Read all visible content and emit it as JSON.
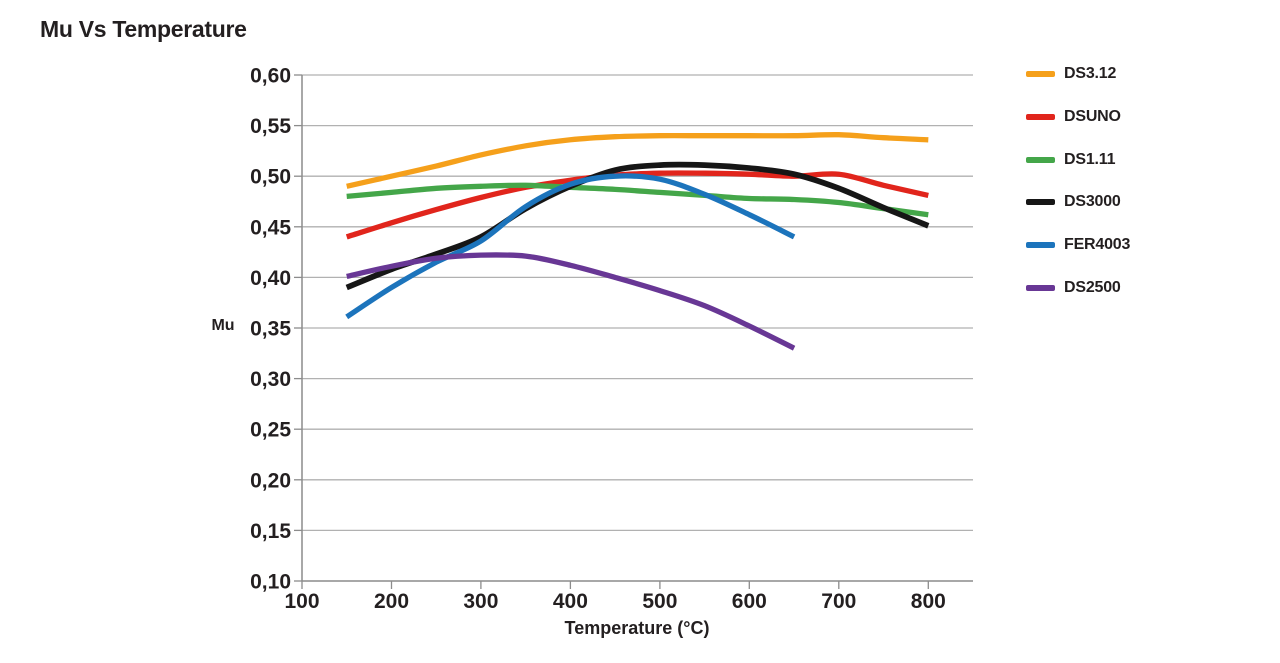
{
  "title": "Mu Vs Temperature",
  "chart_data": {
    "type": "line",
    "title": "Mu Vs Temperature",
    "xlabel": "Temperature (°C)",
    "ylabel": "Mu",
    "xlim": [
      100,
      850
    ],
    "ylim": [
      0.1,
      0.6
    ],
    "grid": "horizontal",
    "legend_position": "right",
    "decimal_separator": ",",
    "x_ticks": [
      100,
      200,
      300,
      400,
      500,
      600,
      700,
      800
    ],
    "x_tick_labels": [
      "100",
      "200",
      "300",
      "400",
      "500",
      "600",
      "700",
      "800"
    ],
    "y_ticks": [
      0.6,
      0.55,
      0.5,
      0.45,
      0.4,
      0.35,
      0.3,
      0.25,
      0.2,
      0.15,
      0.1
    ],
    "y_tick_labels": [
      "0,60",
      "0,55",
      "0,50",
      "0,45",
      "0,40",
      "0,35",
      "0,30",
      "0,25",
      "0,20",
      "0,15",
      "0,10"
    ],
    "style": {
      "text_color": "#231F20",
      "grid_color": "#B1B1B1",
      "axis_color": "#8C8C8C",
      "background": "#FFFFFF"
    },
    "series": [
      {
        "name": "DS3.12",
        "color": "#F5A01B",
        "x": [
          150,
          200,
          250,
          300,
          350,
          400,
          450,
          500,
          550,
          600,
          650,
          700,
          750,
          800
        ],
        "y": [
          0.49,
          0.5,
          0.51,
          0.521,
          0.53,
          0.536,
          0.539,
          0.54,
          0.54,
          0.54,
          0.54,
          0.541,
          0.538,
          0.536
        ]
      },
      {
        "name": "DSUNO",
        "color": "#E1251C",
        "x": [
          150,
          200,
          250,
          300,
          350,
          400,
          450,
          500,
          550,
          600,
          650,
          700,
          750,
          800
        ],
        "y": [
          0.44,
          0.454,
          0.467,
          0.479,
          0.489,
          0.496,
          0.501,
          0.503,
          0.503,
          0.502,
          0.5,
          0.502,
          0.491,
          0.481
        ]
      },
      {
        "name": "DS1.11",
        "color": "#44A649",
        "x": [
          150,
          200,
          250,
          300,
          350,
          400,
          450,
          500,
          550,
          600,
          650,
          700,
          750,
          800
        ],
        "y": [
          0.48,
          0.484,
          0.488,
          0.49,
          0.491,
          0.489,
          0.487,
          0.484,
          0.481,
          0.478,
          0.477,
          0.474,
          0.468,
          0.462
        ]
      },
      {
        "name": "DS3000",
        "color": "#161616",
        "x": [
          150,
          200,
          250,
          300,
          350,
          400,
          450,
          500,
          550,
          600,
          650,
          700,
          750,
          800
        ],
        "y": [
          0.39,
          0.408,
          0.423,
          0.44,
          0.468,
          0.49,
          0.506,
          0.511,
          0.511,
          0.508,
          0.502,
          0.488,
          0.469,
          0.451
        ]
      },
      {
        "name": "FER4003",
        "color": "#1C74BC",
        "x": [
          150,
          200,
          250,
          300,
          350,
          400,
          450,
          500,
          550,
          600,
          650
        ],
        "y": [
          0.361,
          0.39,
          0.415,
          0.436,
          0.47,
          0.492,
          0.5,
          0.497,
          0.482,
          0.462,
          0.44
        ]
      },
      {
        "name": "DS2500",
        "color": "#683795",
        "x": [
          150,
          200,
          250,
          300,
          350,
          400,
          450,
          500,
          550,
          600,
          650
        ],
        "y": [
          0.401,
          0.411,
          0.419,
          0.422,
          0.421,
          0.412,
          0.4,
          0.387,
          0.372,
          0.352,
          0.33
        ]
      }
    ]
  }
}
